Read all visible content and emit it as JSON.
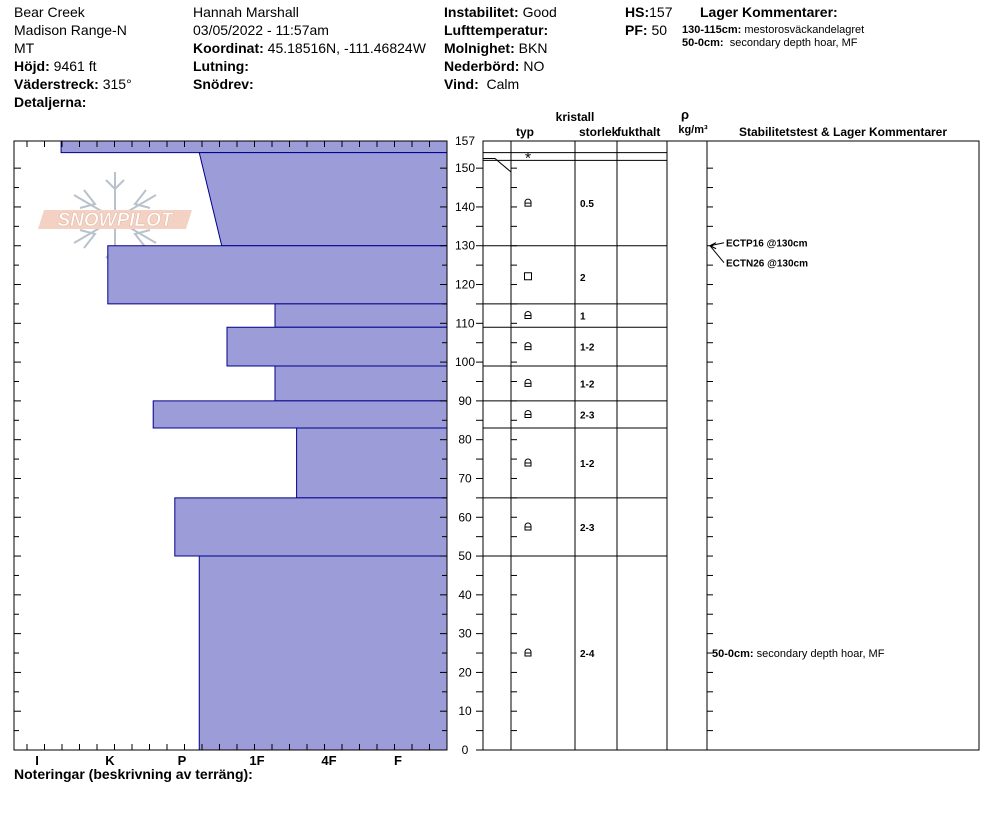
{
  "header": {
    "location_line1": "Bear Creek",
    "location_line2": "Madison Range-N",
    "location_line3": "MT",
    "elevation_label": "Höjd:",
    "elevation_value": "9461 ft",
    "aspect_label": "Väderstreck:",
    "aspect_value": "315°",
    "details_label": "Detaljerna:",
    "observer": "Hannah Marshall",
    "datetime": "03/05/2022 - 11:57am",
    "coord_label": "Koordinat:",
    "coord_value": "45.18516N, -111.46824W",
    "slope_label": "Lutning:",
    "drift_label": "Snödrev:",
    "stability_label": "Instabilitet:",
    "stability_value": "Good",
    "airtemp_label": "Lufttemperatur:",
    "cloud_label": "Molnighet:",
    "cloud_value": "BKN",
    "precip_label": "Nederbörd:",
    "precip_value": "NO",
    "wind_label": "Vind:",
    "wind_value": "Calm",
    "hs_label": "HS:",
    "hs_value": "157",
    "pf_label": "PF:",
    "pf_value": "50",
    "layer_comments_title": "Lager Kommentarer:",
    "layer_comment_1_range": "130-115cm:",
    "layer_comment_1_text": "mestorosväckandelagret",
    "layer_comment_2_range": "50-0cm:",
    "layer_comment_2_text": "secondary depth hoar, MF"
  },
  "table_headers": {
    "crystal": "kristall",
    "type": "typ",
    "size": "storlek",
    "moisture": "fukthalt",
    "rho": "ρ",
    "density_unit": "kg/m³",
    "stability_comments": "Stabilitetstest & Lager Kommentarer"
  },
  "footer": {
    "notes_label": "Noteringar (beskrivning av terräng):"
  },
  "logo_text": "SNOWPILOT",
  "colors": {
    "hardness_fill": "#9c9cd8",
    "hardness_stroke": "#00008b"
  },
  "chart_data": {
    "type": "bar",
    "orientation": "horizontal",
    "title": "",
    "ylabel": "",
    "xlabel": "",
    "ylim": [
      0,
      157
    ],
    "y_ticks": [
      0,
      10,
      20,
      30,
      40,
      50,
      60,
      70,
      80,
      90,
      100,
      110,
      120,
      130,
      140,
      150,
      157
    ],
    "hardness_categories": [
      "I",
      "K",
      "P",
      "1F",
      "4F",
      "F"
    ],
    "hardness_layers": [
      {
        "bottom": 154,
        "top": 157,
        "hardness_index": 0.33
      },
      {
        "bottom": 130,
        "top": 154,
        "hardness_index_bottom": 2.53,
        "hardness_index_top": 2.23
      },
      {
        "bottom": 115,
        "top": 130,
        "hardness_index": 0.97
      },
      {
        "bottom": 109,
        "top": 115,
        "hardness_index": 3.25
      },
      {
        "bottom": 99,
        "top": 109,
        "hardness_index": 2.6
      },
      {
        "bottom": 90,
        "top": 99,
        "hardness_index": 3.25
      },
      {
        "bottom": 83,
        "top": 90,
        "hardness_index": 1.6
      },
      {
        "bottom": 65,
        "top": 83,
        "hardness_index": 3.55
      },
      {
        "bottom": 50,
        "top": 65,
        "hardness_index": 1.9
      },
      {
        "bottom": 0,
        "top": 50,
        "hardness_index": 2.23
      }
    ],
    "layer_boundaries": [
      154,
      152,
      130,
      115,
      109,
      99,
      90,
      83,
      65,
      50
    ],
    "crystal_layers": [
      {
        "depth": 153,
        "type": "new-snow",
        "size": ""
      },
      {
        "depth": 141,
        "type": "rounded",
        "size": "0.5"
      },
      {
        "depth": 122,
        "type": "faceted",
        "size": "2"
      },
      {
        "depth": 112,
        "type": "rounded",
        "size": "1"
      },
      {
        "depth": 104,
        "type": "rounded",
        "size": "1-2"
      },
      {
        "depth": 94.5,
        "type": "rounded",
        "size": "1-2"
      },
      {
        "depth": 86.5,
        "type": "rounded",
        "size": "2-3"
      },
      {
        "depth": 74,
        "type": "rounded",
        "size": "1-2"
      },
      {
        "depth": 57.5,
        "type": "rounded",
        "size": "2-3"
      },
      {
        "depth": 25,
        "type": "rounded",
        "size": "2-4"
      }
    ],
    "stability_tests": [
      {
        "depth": 130,
        "label": "ECTP16 @130cm"
      },
      {
        "depth": 130,
        "label": "ECTN26 @130cm"
      }
    ],
    "layer_comments": [
      {
        "depth": 25,
        "range": "50-0cm:",
        "text": "secondary depth hoar, MF"
      }
    ]
  }
}
